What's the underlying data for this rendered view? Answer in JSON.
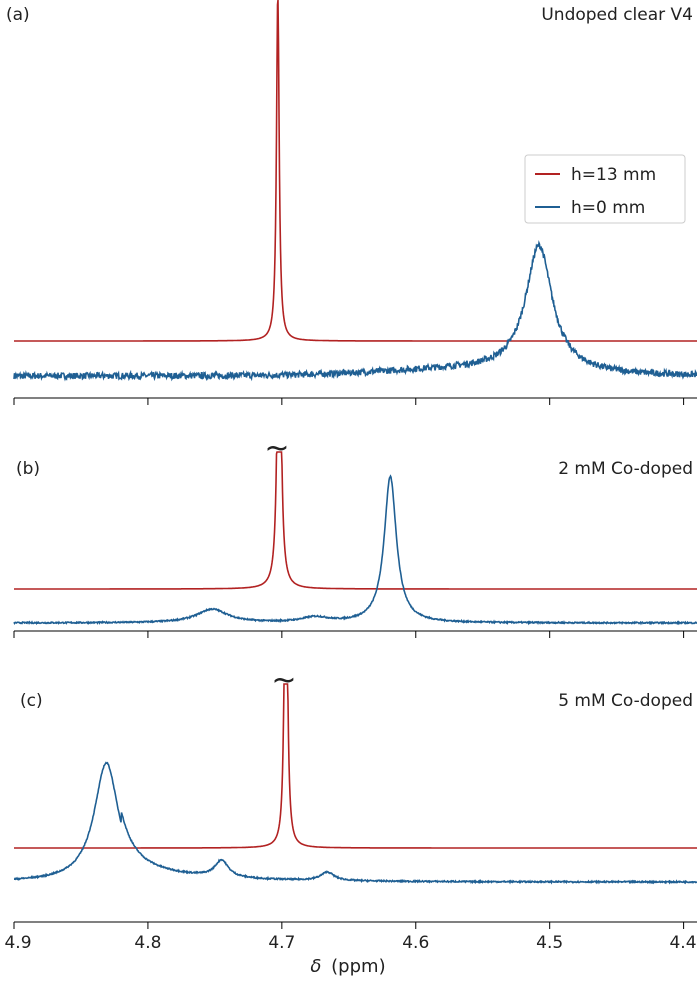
{
  "figure": {
    "xlabel_symbol": "δ",
    "xlabel_unit": "(ppm)",
    "legend": [
      "h=13 mm",
      "h=0 mm"
    ],
    "colors": {
      "h13": "#b22222",
      "h0": "#1f5f93",
      "axis": "#000000"
    },
    "xlim": [
      4.9,
      4.39
    ],
    "xticks": [
      "4.9",
      "4.8",
      "4.7",
      "4.6",
      "4.5",
      "4.4"
    ]
  },
  "chart_data": [
    {
      "type": "line",
      "panel": "(a)",
      "title": "Undoped clear V4",
      "xlabel": "δ (ppm)",
      "series": [
        {
          "name": "h=13 mm",
          "color": "#b22222",
          "baseline": 0.0,
          "peaks": [
            {
              "x": 4.703,
              "height": 1.0,
              "width": 0.0012
            }
          ]
        },
        {
          "name": "h=0 mm",
          "color": "#1f5f93",
          "baseline": -0.1,
          "peaks": [
            {
              "x": 4.508,
              "height": 0.36,
              "width": 0.012
            }
          ],
          "noise": true
        }
      ]
    },
    {
      "type": "line",
      "panel": "(b)",
      "title": "2 mM Co-doped",
      "xlabel": "δ (ppm)",
      "annotation": "~",
      "series": [
        {
          "name": "h=13 mm",
          "color": "#b22222",
          "baseline": 0.0,
          "peaks": [
            {
              "x": 4.702,
              "height": 1.2,
              "width": 0.0014
            }
          ]
        },
        {
          "name": "h=0 mm",
          "color": "#1f5f93",
          "baseline": -0.1,
          "peaks": [
            {
              "x": 4.752,
              "height": 0.04,
              "width": 0.014
            },
            {
              "x": 4.675,
              "height": 0.015,
              "width": 0.012
            },
            {
              "x": 4.619,
              "height": 0.43,
              "width": 0.0055
            }
          ]
        }
      ]
    },
    {
      "type": "line",
      "panel": "(c)",
      "title": "5 mM Co-doped",
      "xlabel": "δ (ppm)",
      "annotation": "~",
      "series": [
        {
          "name": "h=13 mm",
          "color": "#b22222",
          "baseline": 0.0,
          "peaks": [
            {
              "x": 4.697,
              "height": 1.2,
              "width": 0.0012
            }
          ]
        },
        {
          "name": "h=0 mm",
          "color": "#1f5f93",
          "baseline": -0.1,
          "peaks": [
            {
              "x": 4.831,
              "height": 0.35,
              "width": 0.011
            },
            {
              "x": 4.745,
              "height": 0.05,
              "width": 0.006
            },
            {
              "x": 4.666,
              "height": 0.025,
              "width": 0.006
            }
          ]
        }
      ]
    }
  ]
}
